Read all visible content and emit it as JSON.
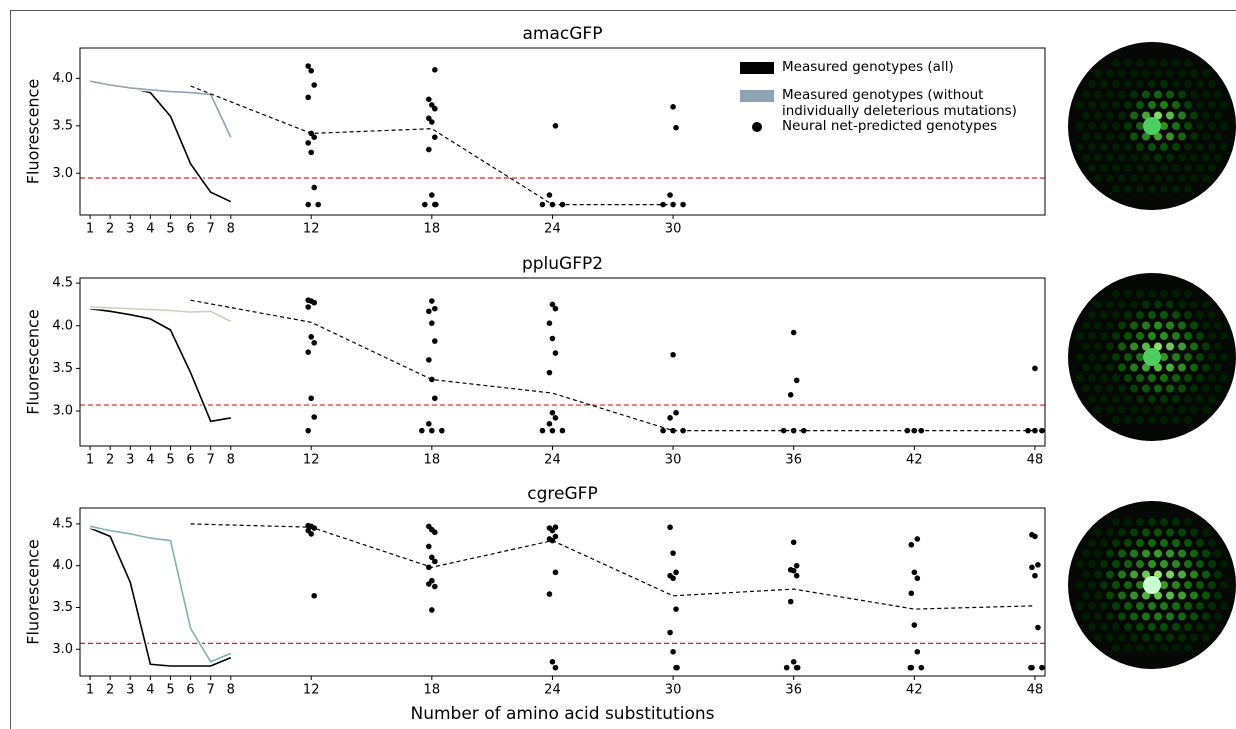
{
  "chart_data": [
    {
      "type": "line",
      "title": "amacGFP",
      "y_label": "Fluorescence",
      "xlim": [
        0.5,
        48.5
      ],
      "xticks": [
        1,
        2,
        3,
        4,
        5,
        6,
        7,
        8,
        12,
        18,
        24,
        30
      ],
      "ylim": [
        2.56,
        4.32
      ],
      "yticks": [
        3.0,
        3.5,
        4.0
      ],
      "threshold": 2.95,
      "threshold_color": "#d62728",
      "series": [
        {
          "name": "Measured genotypes (all)",
          "color": "#000000",
          "style": "measured",
          "x": [
            1,
            2,
            3,
            4,
            5,
            6,
            7,
            8
          ],
          "values": [
            3.96,
            3.93,
            3.9,
            3.85,
            3.6,
            3.1,
            2.8,
            2.7
          ]
        },
        {
          "name": "Measured genotypes (without individually deleterious mutations)",
          "color": "#8ea4b0",
          "style": "measured",
          "x": [
            1,
            2,
            3,
            4,
            5,
            6,
            7,
            8
          ],
          "values": [
            3.97,
            3.93,
            3.9,
            3.88,
            3.86,
            3.85,
            3.83,
            3.38
          ]
        },
        {
          "color": "#000000",
          "style": "dashed",
          "x": [
            6,
            12,
            18,
            24,
            30
          ],
          "values": [
            3.92,
            3.42,
            3.47,
            2.67,
            2.67
          ]
        },
        {
          "name": "Neural net-predicted genotypes",
          "color": "#000000",
          "style": "points",
          "x": [
            12,
            12,
            12,
            12,
            12,
            12,
            12,
            12,
            12,
            12,
            12,
            18,
            18,
            18,
            18,
            18,
            18,
            18,
            18,
            18,
            18,
            18,
            18,
            24,
            24,
            24,
            24,
            24,
            30,
            30,
            30,
            30,
            30,
            30
          ],
          "values": [
            4.13,
            4.08,
            3.93,
            3.8,
            3.42,
            3.38,
            3.32,
            3.22,
            2.85,
            2.67,
            2.67,
            4.09,
            3.78,
            3.72,
            3.68,
            3.58,
            3.54,
            3.38,
            3.25,
            2.77,
            2.67,
            2.67,
            2.67,
            3.5,
            2.77,
            2.67,
            2.67,
            2.67,
            3.7,
            3.48,
            2.77,
            2.67,
            2.67,
            2.67
          ]
        }
      ]
    },
    {
      "type": "line",
      "title": "ppluGFP2",
      "y_label": "Fluorescence",
      "xlim": [
        0.5,
        48.5
      ],
      "xticks": [
        1,
        2,
        3,
        4,
        5,
        6,
        7,
        8,
        12,
        18,
        24,
        30,
        36,
        42,
        48
      ],
      "ylim": [
        2.59,
        4.56
      ],
      "yticks": [
        3.0,
        3.5,
        4.0,
        4.5
      ],
      "threshold": 3.07,
      "threshold_color": "#d62728",
      "series": [
        {
          "color": "#000000",
          "style": "measured",
          "x": [
            1,
            2,
            3,
            4,
            5,
            6,
            7,
            8
          ],
          "values": [
            4.2,
            4.17,
            4.13,
            4.08,
            3.95,
            3.45,
            2.88,
            2.92
          ]
        },
        {
          "color": "#c8d4b8",
          "style": "measured",
          "x": [
            1,
            2,
            3,
            4,
            5,
            6,
            7,
            8
          ],
          "values": [
            4.22,
            4.21,
            4.2,
            4.19,
            4.18,
            4.16,
            4.17,
            4.05
          ]
        },
        {
          "color": "#000000",
          "style": "dashed",
          "x": [
            6,
            12,
            18,
            24,
            30,
            36,
            42,
            48
          ],
          "values": [
            4.3,
            4.04,
            3.37,
            3.21,
            2.77,
            2.77,
            2.77,
            2.77
          ]
        },
        {
          "color": "#000000",
          "style": "points",
          "x": [
            12,
            12,
            12,
            12,
            12,
            12,
            12,
            12,
            12,
            12,
            18,
            18,
            18,
            18,
            18,
            18,
            18,
            18,
            18,
            18,
            18,
            18,
            24,
            24,
            24,
            24,
            24,
            24,
            24,
            24,
            24,
            24,
            24,
            24,
            30,
            30,
            30,
            30,
            30,
            30,
            36,
            36,
            36,
            36,
            36,
            36,
            42,
            42,
            42,
            48,
            48,
            48,
            48
          ],
          "values": [
            4.3,
            4.29,
            4.27,
            4.22,
            3.87,
            3.8,
            3.69,
            3.15,
            2.93,
            2.77,
            4.29,
            4.2,
            4.17,
            4.03,
            3.82,
            3.6,
            3.37,
            3.15,
            2.85,
            2.77,
            2.77,
            2.77,
            4.25,
            4.2,
            4.03,
            3.85,
            3.68,
            3.45,
            2.98,
            2.92,
            2.85,
            2.77,
            2.77,
            2.77,
            3.66,
            2.98,
            2.92,
            2.77,
            2.77,
            2.77,
            3.92,
            3.36,
            3.19,
            2.77,
            2.77,
            2.77,
            2.77,
            2.77,
            2.77,
            3.5,
            2.77,
            2.77,
            2.77
          ]
        }
      ]
    },
    {
      "type": "line",
      "title": "cgreGFP",
      "y_label": "Fluorescence",
      "x_label": "Number of amino acid substitutions",
      "xlim": [
        0.5,
        48.5
      ],
      "xticks": [
        1,
        2,
        3,
        4,
        5,
        6,
        7,
        8,
        12,
        18,
        24,
        30,
        36,
        42,
        48
      ],
      "ylim": [
        2.68,
        4.69
      ],
      "yticks": [
        3.0,
        3.5,
        4.0,
        4.5
      ],
      "threshold": 3.07,
      "threshold_color": "#d62728",
      "series": [
        {
          "color": "#000000",
          "style": "measured",
          "x": [
            1,
            2,
            3,
            4,
            5,
            6,
            7,
            8
          ],
          "values": [
            4.45,
            4.35,
            3.8,
            2.82,
            2.8,
            2.8,
            2.8,
            2.9
          ]
        },
        {
          "color": "#7fb3ab",
          "style": "measured",
          "x": [
            1,
            2,
            3,
            4,
            5,
            6,
            7,
            8
          ],
          "values": [
            4.47,
            4.42,
            4.38,
            4.33,
            4.3,
            3.25,
            2.85,
            2.95
          ]
        },
        {
          "color": "#000000",
          "style": "dashed",
          "x": [
            6,
            12,
            18,
            24,
            30,
            36,
            42,
            48
          ],
          "values": [
            4.5,
            4.46,
            3.98,
            4.3,
            3.64,
            3.72,
            3.48,
            3.52
          ]
        },
        {
          "color": "#000000",
          "style": "points",
          "x": [
            12,
            12,
            12,
            12,
            12,
            12,
            18,
            18,
            18,
            18,
            18,
            18,
            18,
            18,
            18,
            18,
            18,
            24,
            24,
            24,
            24,
            24,
            24,
            24,
            24,
            24,
            24,
            30,
            30,
            30,
            30,
            30,
            30,
            30,
            30,
            30,
            30,
            36,
            36,
            36,
            36,
            36,
            36,
            36,
            36,
            36,
            36,
            42,
            42,
            42,
            42,
            42,
            42,
            42,
            42,
            42,
            42,
            48,
            48,
            48,
            48,
            48,
            48,
            48,
            48,
            48
          ],
          "values": [
            4.48,
            4.47,
            4.45,
            4.42,
            4.38,
            3.64,
            4.47,
            4.43,
            4.4,
            4.23,
            4.1,
            4.05,
            3.98,
            3.82,
            3.75,
            3.78,
            3.47,
            4.46,
            4.45,
            4.42,
            4.35,
            4.32,
            4.3,
            3.92,
            3.66,
            2.85,
            2.78,
            4.46,
            4.15,
            3.92,
            3.88,
            3.85,
            3.48,
            3.2,
            2.97,
            2.78,
            2.78,
            4.28,
            4.0,
            3.95,
            3.94,
            3.88,
            3.57,
            2.85,
            2.78,
            2.78,
            2.78,
            4.32,
            4.25,
            3.92,
            3.85,
            3.67,
            3.29,
            2.97,
            2.78,
            2.78,
            2.78,
            4.37,
            4.35,
            4.01,
            3.98,
            3.88,
            3.26,
            2.78,
            2.78,
            2.78
          ]
        }
      ]
    }
  ]
}
